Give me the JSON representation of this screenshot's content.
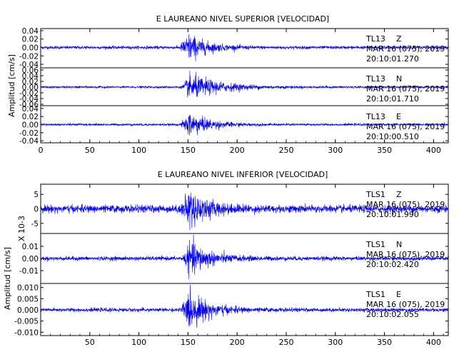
{
  "chart_data": [
    {
      "type": "line",
      "title": "E LAUREANO NIVEL SUPERIOR [VELOCIDAD]",
      "ylabel": "Amplitud [cm/s]",
      "xlabel": "",
      "xlim": [
        0,
        415
      ],
      "x_ticks": [
        0,
        50,
        100,
        150,
        200,
        250,
        300,
        350,
        400
      ],
      "grid": false,
      "trace_color": "#0000ee",
      "traces": [
        {
          "station": "TL13",
          "component": "Z",
          "date": "MAR 16 (075), 2019",
          "time": "20:10:01.270",
          "ylim": [
            -0.045,
            0.045
          ],
          "y_ticks": [
            -0.04,
            -0.02,
            0.0,
            0.02,
            0.04
          ],
          "tick_labels": [
            "0.04",
            "0.02",
            "0.00",
            "-0.02",
            "-0.04"
          ],
          "noise_amp": 0.004,
          "peak_amp": 0.038,
          "onset_s": 141,
          "peak_s": 151,
          "decay_s": 18
        },
        {
          "station": "TL13",
          "component": "N",
          "date": "MAR 16 (075), 2019",
          "time": "20:10:01.710",
          "ylim": [
            -0.065,
            0.065
          ],
          "y_ticks": [
            -0.06,
            -0.04,
            -0.02,
            0.0,
            0.02,
            0.04,
            0.06
          ],
          "tick_labels": [
            "0.06",
            "0.04",
            "0.02",
            "0.00",
            "-0.02",
            "-0.04",
            "-0.06"
          ],
          "noise_amp": 0.004,
          "peak_amp": 0.05,
          "onset_s": 143,
          "peak_s": 153,
          "decay_s": 30
        },
        {
          "station": "TL13",
          "component": "E",
          "date": "MAR 16 (075), 2019",
          "time": "20:10:00.510",
          "ylim": [
            -0.045,
            0.045
          ],
          "y_ticks": [
            -0.04,
            -0.02,
            0.0,
            0.02,
            0.04
          ],
          "tick_labels": [
            "0.04",
            "0.02",
            "0.00",
            "-0.02",
            "-0.04"
          ],
          "noise_amp": 0.003,
          "peak_amp": 0.034,
          "onset_s": 142,
          "peak_s": 152,
          "decay_s": 20
        }
      ]
    },
    {
      "type": "line",
      "title": "E LAUREANO NIVEL INFERIOR [VELOCIDAD]",
      "ylabel": "Amplitud [cm/s]",
      "scale_note": "X 10-3",
      "xlabel": "",
      "xlim": [
        0,
        415
      ],
      "x_ticks": [
        50,
        100,
        150,
        200,
        250,
        300,
        350,
        400
      ],
      "grid": false,
      "trace_color": "#0000ee",
      "traces": [
        {
          "station": "TLS1",
          "component": "Z",
          "date": "MAR 16 (075), 2019",
          "time": "20:10:01.990",
          "ylim": [
            -8.5,
            8.5
          ],
          "y_ticks": [
            -5,
            0,
            5
          ],
          "tick_labels": [
            "5",
            "0",
            "-5"
          ],
          "noise_amp": 1.4,
          "peak_amp": 7.5,
          "onset_s": 141,
          "peak_s": 152,
          "decay_s": 18
        },
        {
          "station": "TLS1",
          "component": "N",
          "date": "MAR 16 (075), 2019",
          "time": "20:10:02.420",
          "ylim": [
            -0.02,
            0.02
          ],
          "y_ticks": [
            -0.01,
            0.0,
            0.01
          ],
          "tick_labels": [
            "0.01",
            "0.00",
            "-0.01"
          ],
          "noise_amp": 0.0018,
          "peak_amp": 0.016,
          "onset_s": 144,
          "peak_s": 153,
          "decay_s": 20
        },
        {
          "station": "TLS1",
          "component": "E",
          "date": "MAR 16 (075), 2019",
          "time": "20:10:02.055",
          "ylim": [
            -0.0115,
            0.0115
          ],
          "y_ticks": [
            -0.01,
            -0.005,
            0.0,
            0.005,
            0.01
          ],
          "tick_labels": [
            "0.010",
            "0.005",
            "0.000",
            "-0.005",
            "-0.010"
          ],
          "noise_amp": 0.0009,
          "peak_amp": 0.0095,
          "onset_s": 142,
          "peak_s": 151,
          "decay_s": 20
        }
      ]
    }
  ]
}
